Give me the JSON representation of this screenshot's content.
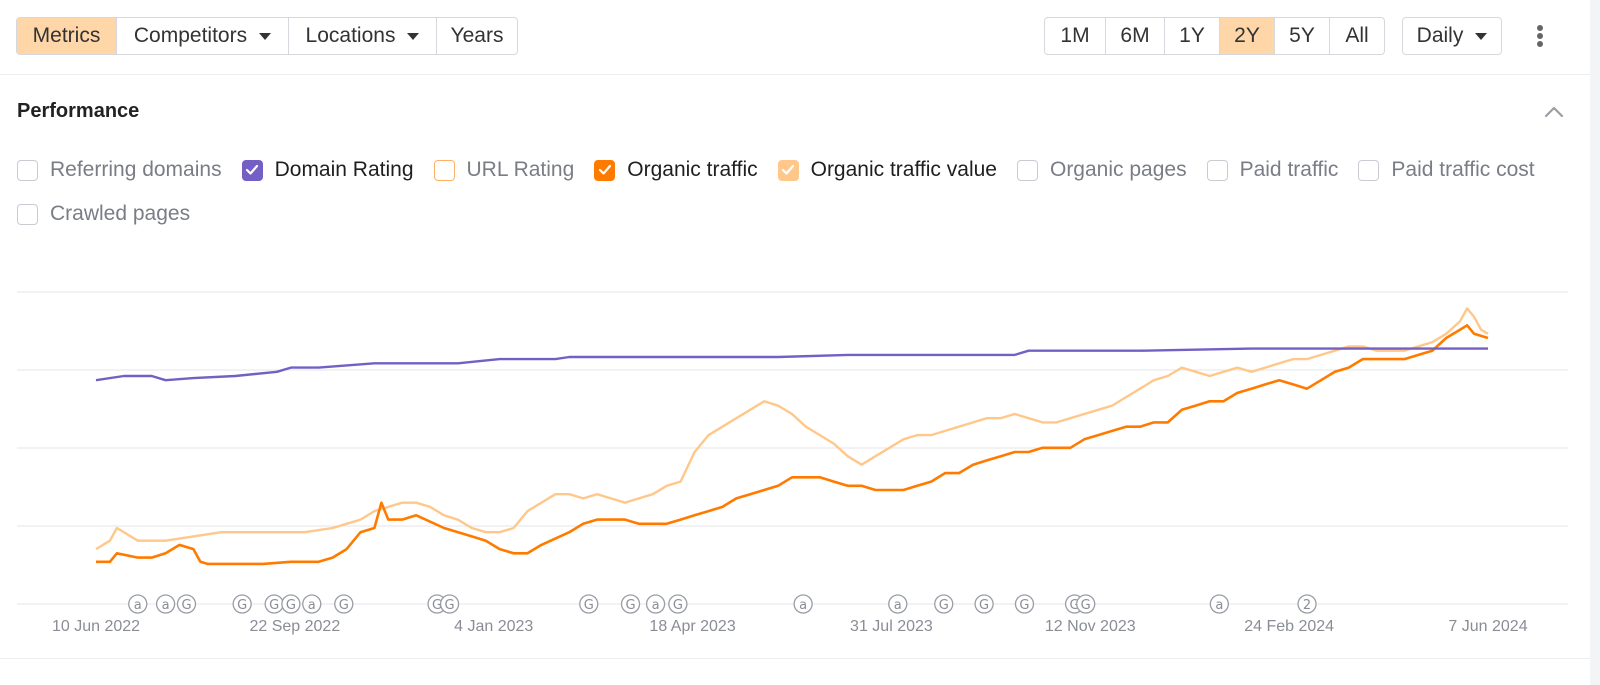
{
  "toolbar": {
    "tabs": [
      {
        "label": "Metrics",
        "active": true,
        "dropdown": false
      },
      {
        "label": "Competitors",
        "active": false,
        "dropdown": true
      },
      {
        "label": "Locations",
        "active": false,
        "dropdown": true
      },
      {
        "label": "Years",
        "active": false,
        "dropdown": false
      }
    ],
    "ranges": [
      {
        "label": "1M",
        "active": false
      },
      {
        "label": "6M",
        "active": false
      },
      {
        "label": "1Y",
        "active": false
      },
      {
        "label": "2Y",
        "active": true
      },
      {
        "label": "5Y",
        "active": false
      },
      {
        "label": "All",
        "active": false
      }
    ],
    "interval_label": "Daily",
    "more_icon": "more-vertical-icon"
  },
  "panel": {
    "title": "Performance",
    "collapse_icon": "chevron-up-icon"
  },
  "metrics": [
    {
      "label": "Referring domains",
      "checked": false,
      "color": "#c9ccd2"
    },
    {
      "label": "Domain Rating",
      "checked": true,
      "color": "#7460c4"
    },
    {
      "label": "URL Rating",
      "checked": false,
      "color": "#ffb066"
    },
    {
      "label": "Organic traffic",
      "checked": true,
      "color": "#ff7b00"
    },
    {
      "label": "Organic traffic value",
      "checked": true,
      "color": "#ffc88a"
    },
    {
      "label": "Organic pages",
      "checked": false,
      "color": "#c9ccd2"
    },
    {
      "label": "Paid traffic",
      "checked": false,
      "color": "#c9ccd2"
    },
    {
      "label": "Paid traffic cost",
      "checked": false,
      "color": "#c9ccd2"
    },
    {
      "label": "Crawled pages",
      "checked": false,
      "color": "#c9ccd2"
    }
  ],
  "chart_data": {
    "type": "line",
    "x_tick_labels": [
      "10 Jun 2022",
      "22 Sep 2022",
      "4 Jan 2023",
      "18 Apr 2023",
      "31 Jul 2023",
      "12 Nov 2023",
      "24 Feb 2024",
      "7 Jun 2024"
    ],
    "y_scale": "relative (no axis labels shown)",
    "grid": true,
    "ylim": [
      0,
      100
    ],
    "series": [
      {
        "name": "Domain Rating",
        "color": "#7460c4",
        "points": [
          [
            0,
            73
          ],
          [
            2,
            74
          ],
          [
            4,
            74
          ],
          [
            5,
            73
          ],
          [
            7,
            73.5
          ],
          [
            10,
            74
          ],
          [
            13,
            75
          ],
          [
            14,
            76
          ],
          [
            16,
            76
          ],
          [
            20,
            77
          ],
          [
            26,
            77
          ],
          [
            29,
            78
          ],
          [
            33,
            78
          ],
          [
            34,
            78.5
          ],
          [
            45,
            78.5
          ],
          [
            49,
            78.5
          ],
          [
            54,
            79
          ],
          [
            66,
            79
          ],
          [
            67,
            80
          ],
          [
            75,
            80
          ],
          [
            83,
            80.5
          ],
          [
            100,
            80.5
          ]
        ]
      },
      {
        "name": "Organic traffic",
        "color": "#ff7b00",
        "points": [
          [
            0,
            30
          ],
          [
            1,
            30
          ],
          [
            1.5,
            32
          ],
          [
            3,
            31
          ],
          [
            4,
            31
          ],
          [
            5,
            32
          ],
          [
            6,
            34
          ],
          [
            7,
            33
          ],
          [
            7.5,
            30
          ],
          [
            8,
            29.5
          ],
          [
            10,
            29.5
          ],
          [
            12,
            29.5
          ],
          [
            14,
            30
          ],
          [
            16,
            30
          ],
          [
            17,
            31
          ],
          [
            18,
            33
          ],
          [
            19,
            37
          ],
          [
            20,
            38
          ],
          [
            20.5,
            44
          ],
          [
            21,
            40
          ],
          [
            22,
            40
          ],
          [
            23,
            41
          ],
          [
            25,
            38
          ],
          [
            27,
            36
          ],
          [
            28,
            35
          ],
          [
            29,
            33
          ],
          [
            30,
            32
          ],
          [
            31,
            32
          ],
          [
            32,
            34
          ],
          [
            34,
            37
          ],
          [
            35,
            39
          ],
          [
            36,
            40
          ],
          [
            37,
            40
          ],
          [
            38,
            40
          ],
          [
            39,
            39
          ],
          [
            40,
            39
          ],
          [
            41,
            39
          ],
          [
            42,
            40
          ],
          [
            43,
            41
          ],
          [
            44,
            42
          ],
          [
            45,
            43
          ],
          [
            46,
            45
          ],
          [
            47,
            46
          ],
          [
            48,
            47
          ],
          [
            49,
            48
          ],
          [
            50,
            50
          ],
          [
            51,
            50
          ],
          [
            52,
            50
          ],
          [
            53,
            49
          ],
          [
            54,
            48
          ],
          [
            55,
            48
          ],
          [
            56,
            47
          ],
          [
            57,
            47
          ],
          [
            58,
            47
          ],
          [
            59,
            48
          ],
          [
            60,
            49
          ],
          [
            61,
            51
          ],
          [
            62,
            51
          ],
          [
            63,
            53
          ],
          [
            64,
            54
          ],
          [
            65,
            55
          ],
          [
            66,
            56
          ],
          [
            67,
            56
          ],
          [
            68,
            57
          ],
          [
            69,
            57
          ],
          [
            70,
            57
          ],
          [
            71,
            59
          ],
          [
            72,
            60
          ],
          [
            73,
            61
          ],
          [
            74,
            62
          ],
          [
            75,
            62
          ],
          [
            76,
            63
          ],
          [
            77,
            63
          ],
          [
            78,
            66
          ],
          [
            79,
            67
          ],
          [
            80,
            68
          ],
          [
            81,
            68
          ],
          [
            82,
            70
          ],
          [
            83,
            71
          ],
          [
            84,
            72
          ],
          [
            85,
            73
          ],
          [
            86,
            72
          ],
          [
            87,
            71
          ],
          [
            88,
            73
          ],
          [
            89,
            75
          ],
          [
            90,
            76
          ],
          [
            91,
            78
          ],
          [
            92,
            78
          ],
          [
            93,
            78
          ],
          [
            94,
            78
          ],
          [
            95,
            79
          ],
          [
            96,
            80
          ],
          [
            97,
            83
          ],
          [
            98,
            85
          ],
          [
            98.5,
            86
          ],
          [
            99,
            84
          ],
          [
            100,
            83
          ]
        ]
      },
      {
        "name": "Organic traffic value",
        "color": "#ffc88a",
        "points": [
          [
            0,
            33
          ],
          [
            1,
            35
          ],
          [
            1.5,
            38
          ],
          [
            2,
            37
          ],
          [
            3,
            35
          ],
          [
            5,
            35
          ],
          [
            7,
            36
          ],
          [
            9,
            37
          ],
          [
            11,
            37
          ],
          [
            13,
            37
          ],
          [
            15,
            37
          ],
          [
            17,
            38
          ],
          [
            18,
            39
          ],
          [
            19,
            40
          ],
          [
            20,
            42
          ],
          [
            21,
            43
          ],
          [
            22,
            44
          ],
          [
            23,
            44
          ],
          [
            24,
            43
          ],
          [
            25,
            41
          ],
          [
            26,
            40
          ],
          [
            27,
            38
          ],
          [
            28,
            37
          ],
          [
            29,
            37
          ],
          [
            30,
            38
          ],
          [
            31,
            42
          ],
          [
            32,
            44
          ],
          [
            33,
            46
          ],
          [
            34,
            46
          ],
          [
            35,
            45
          ],
          [
            36,
            46
          ],
          [
            37,
            45
          ],
          [
            38,
            44
          ],
          [
            39,
            45
          ],
          [
            40,
            46
          ],
          [
            41,
            48
          ],
          [
            42,
            49
          ],
          [
            43,
            56
          ],
          [
            44,
            60
          ],
          [
            45,
            62
          ],
          [
            46,
            64
          ],
          [
            47,
            66
          ],
          [
            48,
            68
          ],
          [
            49,
            67
          ],
          [
            50,
            65
          ],
          [
            51,
            62
          ],
          [
            52,
            60
          ],
          [
            53,
            58
          ],
          [
            54,
            55
          ],
          [
            55,
            53
          ],
          [
            56,
            55
          ],
          [
            57,
            57
          ],
          [
            58,
            59
          ],
          [
            59,
            60
          ],
          [
            60,
            60
          ],
          [
            61,
            61
          ],
          [
            62,
            62
          ],
          [
            63,
            63
          ],
          [
            64,
            64
          ],
          [
            65,
            64
          ],
          [
            66,
            65
          ],
          [
            67,
            64
          ],
          [
            68,
            63
          ],
          [
            69,
            63
          ],
          [
            70,
            64
          ],
          [
            71,
            65
          ],
          [
            72,
            66
          ],
          [
            73,
            67
          ],
          [
            74,
            69
          ],
          [
            75,
            71
          ],
          [
            76,
            73
          ],
          [
            77,
            74
          ],
          [
            78,
            76
          ],
          [
            79,
            75
          ],
          [
            80,
            74
          ],
          [
            81,
            75
          ],
          [
            82,
            76
          ],
          [
            83,
            75
          ],
          [
            84,
            76
          ],
          [
            85,
            77
          ],
          [
            86,
            78
          ],
          [
            87,
            78
          ],
          [
            88,
            79
          ],
          [
            89,
            80
          ],
          [
            90,
            81
          ],
          [
            91,
            81
          ],
          [
            92,
            80
          ],
          [
            93,
            80
          ],
          [
            94,
            80
          ],
          [
            95,
            81
          ],
          [
            96,
            82
          ],
          [
            97,
            84
          ],
          [
            98,
            87
          ],
          [
            98.5,
            90
          ],
          [
            99,
            88
          ],
          [
            99.5,
            85
          ],
          [
            100,
            84
          ]
        ]
      }
    ],
    "annotations": [
      {
        "x": 3,
        "label": "a"
      },
      {
        "x": 5,
        "label": "a"
      },
      {
        "x": 6.5,
        "label": "G"
      },
      {
        "x": 10.5,
        "label": "G"
      },
      {
        "x": 12.8,
        "label": "G"
      },
      {
        "x": 14,
        "label": "G"
      },
      {
        "x": 15.5,
        "label": "a"
      },
      {
        "x": 17.8,
        "label": "G"
      },
      {
        "x": 24.5,
        "label": "G"
      },
      {
        "x": 25.4,
        "label": "G"
      },
      {
        "x": 35.4,
        "label": "G"
      },
      {
        "x": 38.4,
        "label": "G"
      },
      {
        "x": 40.2,
        "label": "a"
      },
      {
        "x": 41.8,
        "label": "G"
      },
      {
        "x": 50.8,
        "label": "a"
      },
      {
        "x": 57.6,
        "label": "a"
      },
      {
        "x": 60.9,
        "label": "G"
      },
      {
        "x": 63.8,
        "label": "G"
      },
      {
        "x": 66.7,
        "label": "G"
      },
      {
        "x": 70.3,
        "label": "G"
      },
      {
        "x": 71.1,
        "label": "G"
      },
      {
        "x": 80.7,
        "label": "a"
      },
      {
        "x": 87.0,
        "label": "2"
      }
    ]
  }
}
